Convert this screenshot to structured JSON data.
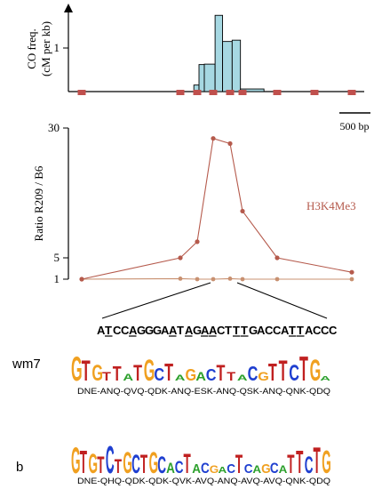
{
  "chart_data": [
    {
      "type": "histogram",
      "ylabel_line1": "CO freq.",
      "ylabel_line2": "(cM per kb)",
      "yticks": [
        "1"
      ],
      "ylim": [
        0,
        1.8
      ],
      "bins": [
        {
          "start": 0.0,
          "end": 0.3,
          "value": 0.15
        },
        {
          "start": 0.3,
          "end": 0.6,
          "value": 0.62
        },
        {
          "start": 0.6,
          "end": 1.2,
          "value": 0.63
        },
        {
          "start": 1.2,
          "end": 1.6,
          "value": 1.75
        },
        {
          "start": 1.6,
          "end": 2.1,
          "value": 1.15
        },
        {
          "start": 2.1,
          "end": 2.5,
          "value": 1.18
        },
        {
          "start": 2.5,
          "end": 3.9,
          "value": 0.06
        }
      ],
      "markers_kb": [
        -6.3,
        -0.8,
        0.2,
        1.1,
        2.0,
        2.6,
        4.7,
        7.2,
        9.6
      ],
      "marker_color": "#c0504d",
      "bar_color": "#a6d8e2",
      "scale_bar_label": "500 bp"
    },
    {
      "type": "line",
      "ylabel": "Ratio R209 / B6",
      "yticks": [
        "30",
        "5",
        "1"
      ],
      "ylim": [
        1,
        30
      ],
      "series_label": "H3K4Me3",
      "series_color": "#b55a4c",
      "series": [
        {
          "name": "H3K4Me3",
          "x": [
            -6.3,
            -0.8,
            0.2,
            1.1,
            2.0,
            2.6,
            4.7,
            9.6
          ],
          "y": [
            1.0,
            5.0,
            8.1,
            28.0,
            27.0,
            14.0,
            5.0,
            2.3
          ]
        },
        {
          "name": "",
          "x": [
            -6.3,
            -0.8,
            0.2,
            1.1,
            2.0,
            2.6,
            4.7,
            9.6
          ],
          "y": [
            1.0,
            1.1,
            1.0,
            1.0,
            1.1,
            1.0,
            1.0,
            1.0
          ]
        }
      ]
    }
  ],
  "sequence": {
    "chars": [
      "A",
      "T",
      "C",
      "C",
      "A",
      "G",
      "G",
      "G",
      "A",
      "A",
      "T",
      "A",
      "G",
      "A",
      "A",
      "C",
      "T",
      "T",
      "T",
      "G",
      "A",
      "C",
      "C",
      "A",
      "T",
      "T",
      "A",
      "C",
      "C",
      "C"
    ],
    "underlined": [
      1,
      4,
      9,
      11,
      13,
      14,
      17,
      18,
      24,
      25
    ]
  },
  "motifs": [
    {
      "label": "wm7",
      "protein_string": "DNE-ANQ-QVQ-QDK-ANQ-ESK-ANQ-QSK-ANQ-QNK-QDQ",
      "letters": [
        {
          "c": "G",
          "h": 0.85
        },
        {
          "c": "T",
          "h": 0.7
        },
        {
          "c": "G",
          "h": 0.55
        },
        {
          "c": "T",
          "h": 0.3
        },
        {
          "c": "T",
          "h": 0.5
        },
        {
          "c": "A",
          "h": 0.25
        },
        {
          "c": "T",
          "h": 0.55
        },
        {
          "c": "G",
          "h": 0.75
        },
        {
          "c": "C",
          "h": 0.45
        },
        {
          "c": "T",
          "h": 0.6
        },
        {
          "c": "A",
          "h": 0.2
        },
        {
          "c": "G",
          "h": 0.4
        },
        {
          "c": "A",
          "h": 0.3
        },
        {
          "c": "C",
          "h": 0.4
        },
        {
          "c": "T",
          "h": 0.55
        },
        {
          "c": "T",
          "h": 0.3
        },
        {
          "c": "A",
          "h": 0.2
        },
        {
          "c": "C",
          "h": 0.5
        },
        {
          "c": "G",
          "h": 0.3
        },
        {
          "c": "T",
          "h": 0.6
        },
        {
          "c": "T",
          "h": 0.7
        },
        {
          "c": "C",
          "h": 0.55
        },
        {
          "c": "T",
          "h": 0.85
        },
        {
          "c": "G",
          "h": 0.75
        },
        {
          "c": "A",
          "h": 0.15
        }
      ]
    },
    {
      "label": "b",
      "protein_string": "DNE-QHQ-QDK-QDK-QVK-AVQ-ANQ-AVQ-AVQ-QNK-QDQ",
      "letters": [
        {
          "c": "G",
          "h": 0.85
        },
        {
          "c": "T",
          "h": 0.75
        },
        {
          "c": "G",
          "h": 0.65
        },
        {
          "c": "T",
          "h": 0.55
        },
        {
          "c": "C",
          "h": 0.9
        },
        {
          "c": "T",
          "h": 0.45
        },
        {
          "c": "G",
          "h": 0.7
        },
        {
          "c": "C",
          "h": 0.6
        },
        {
          "c": "T",
          "h": 0.6
        },
        {
          "c": "G",
          "h": 0.7
        },
        {
          "c": "C",
          "h": 0.55
        },
        {
          "c": "A",
          "h": 0.35
        },
        {
          "c": "C",
          "h": 0.4
        },
        {
          "c": "T",
          "h": 0.65
        },
        {
          "c": "A",
          "h": 0.3
        },
        {
          "c": "C",
          "h": 0.35
        },
        {
          "c": "G",
          "h": 0.25
        },
        {
          "c": "A",
          "h": 0.2
        },
        {
          "c": "C",
          "h": 0.3
        },
        {
          "c": "T",
          "h": 0.6
        },
        {
          "c": "C",
          "h": 0.3
        },
        {
          "c": "A",
          "h": 0.25
        },
        {
          "c": "G",
          "h": 0.3
        },
        {
          "c": "C",
          "h": 0.35
        },
        {
          "c": "A",
          "h": 0.25
        },
        {
          "c": "T",
          "h": 0.6
        },
        {
          "c": "T",
          "h": 0.75
        },
        {
          "c": "C",
          "h": 0.55
        },
        {
          "c": "T",
          "h": 0.85
        },
        {
          "c": "G",
          "h": 0.75
        }
      ]
    }
  ],
  "logo_colors": {
    "A": "#2ca02c",
    "C": "#1f3fd0",
    "G": "#f0a020",
    "T": "#c02020"
  }
}
